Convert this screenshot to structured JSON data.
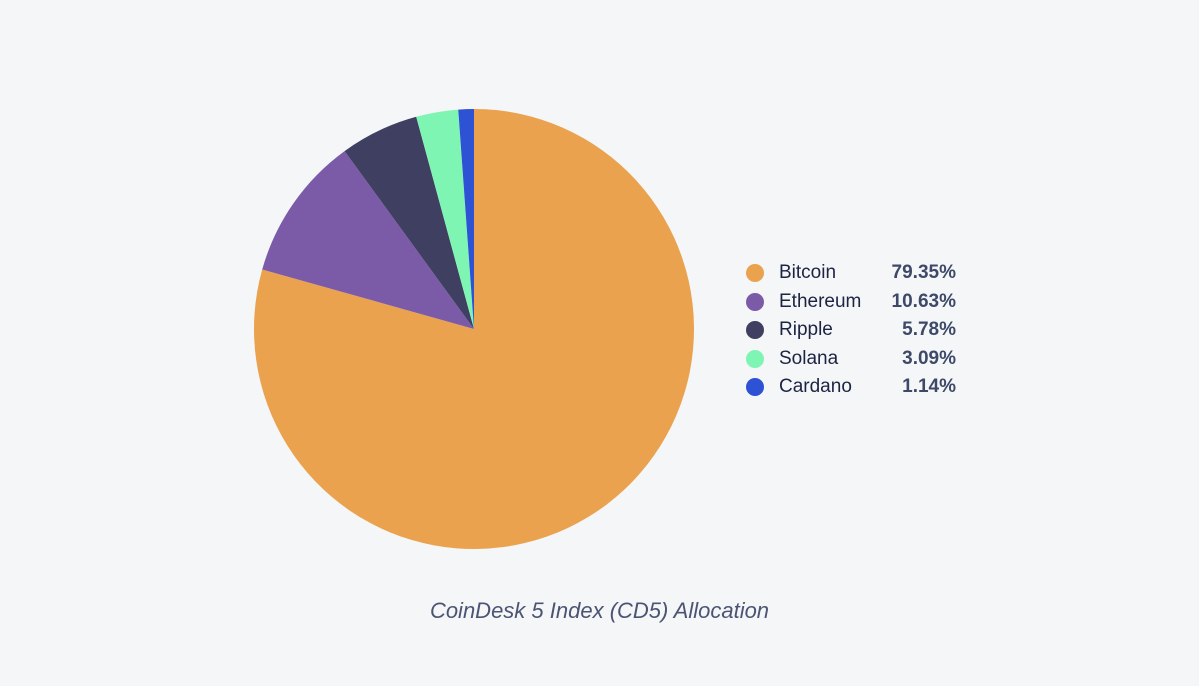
{
  "chart_data": {
    "type": "pie",
    "title": "",
    "caption": "CoinDesk 5 Index (CD5) Allocation",
    "legend_position": "right",
    "slices": [
      {
        "label": "Bitcoin",
        "value": 79.35,
        "display": "79.35%",
        "color": "#eaa24f"
      },
      {
        "label": "Ethereum",
        "value": 10.63,
        "display": "10.63%",
        "color": "#7b5ba8"
      },
      {
        "label": "Ripple",
        "value": 5.78,
        "display": "5.78%",
        "color": "#3f3f61"
      },
      {
        "label": "Solana",
        "value": 3.09,
        "display": "3.09%",
        "color": "#7ff5b4"
      },
      {
        "label": "Cardano",
        "value": 1.14,
        "display": "1.14%",
        "color": "#2d52d4"
      }
    ]
  }
}
